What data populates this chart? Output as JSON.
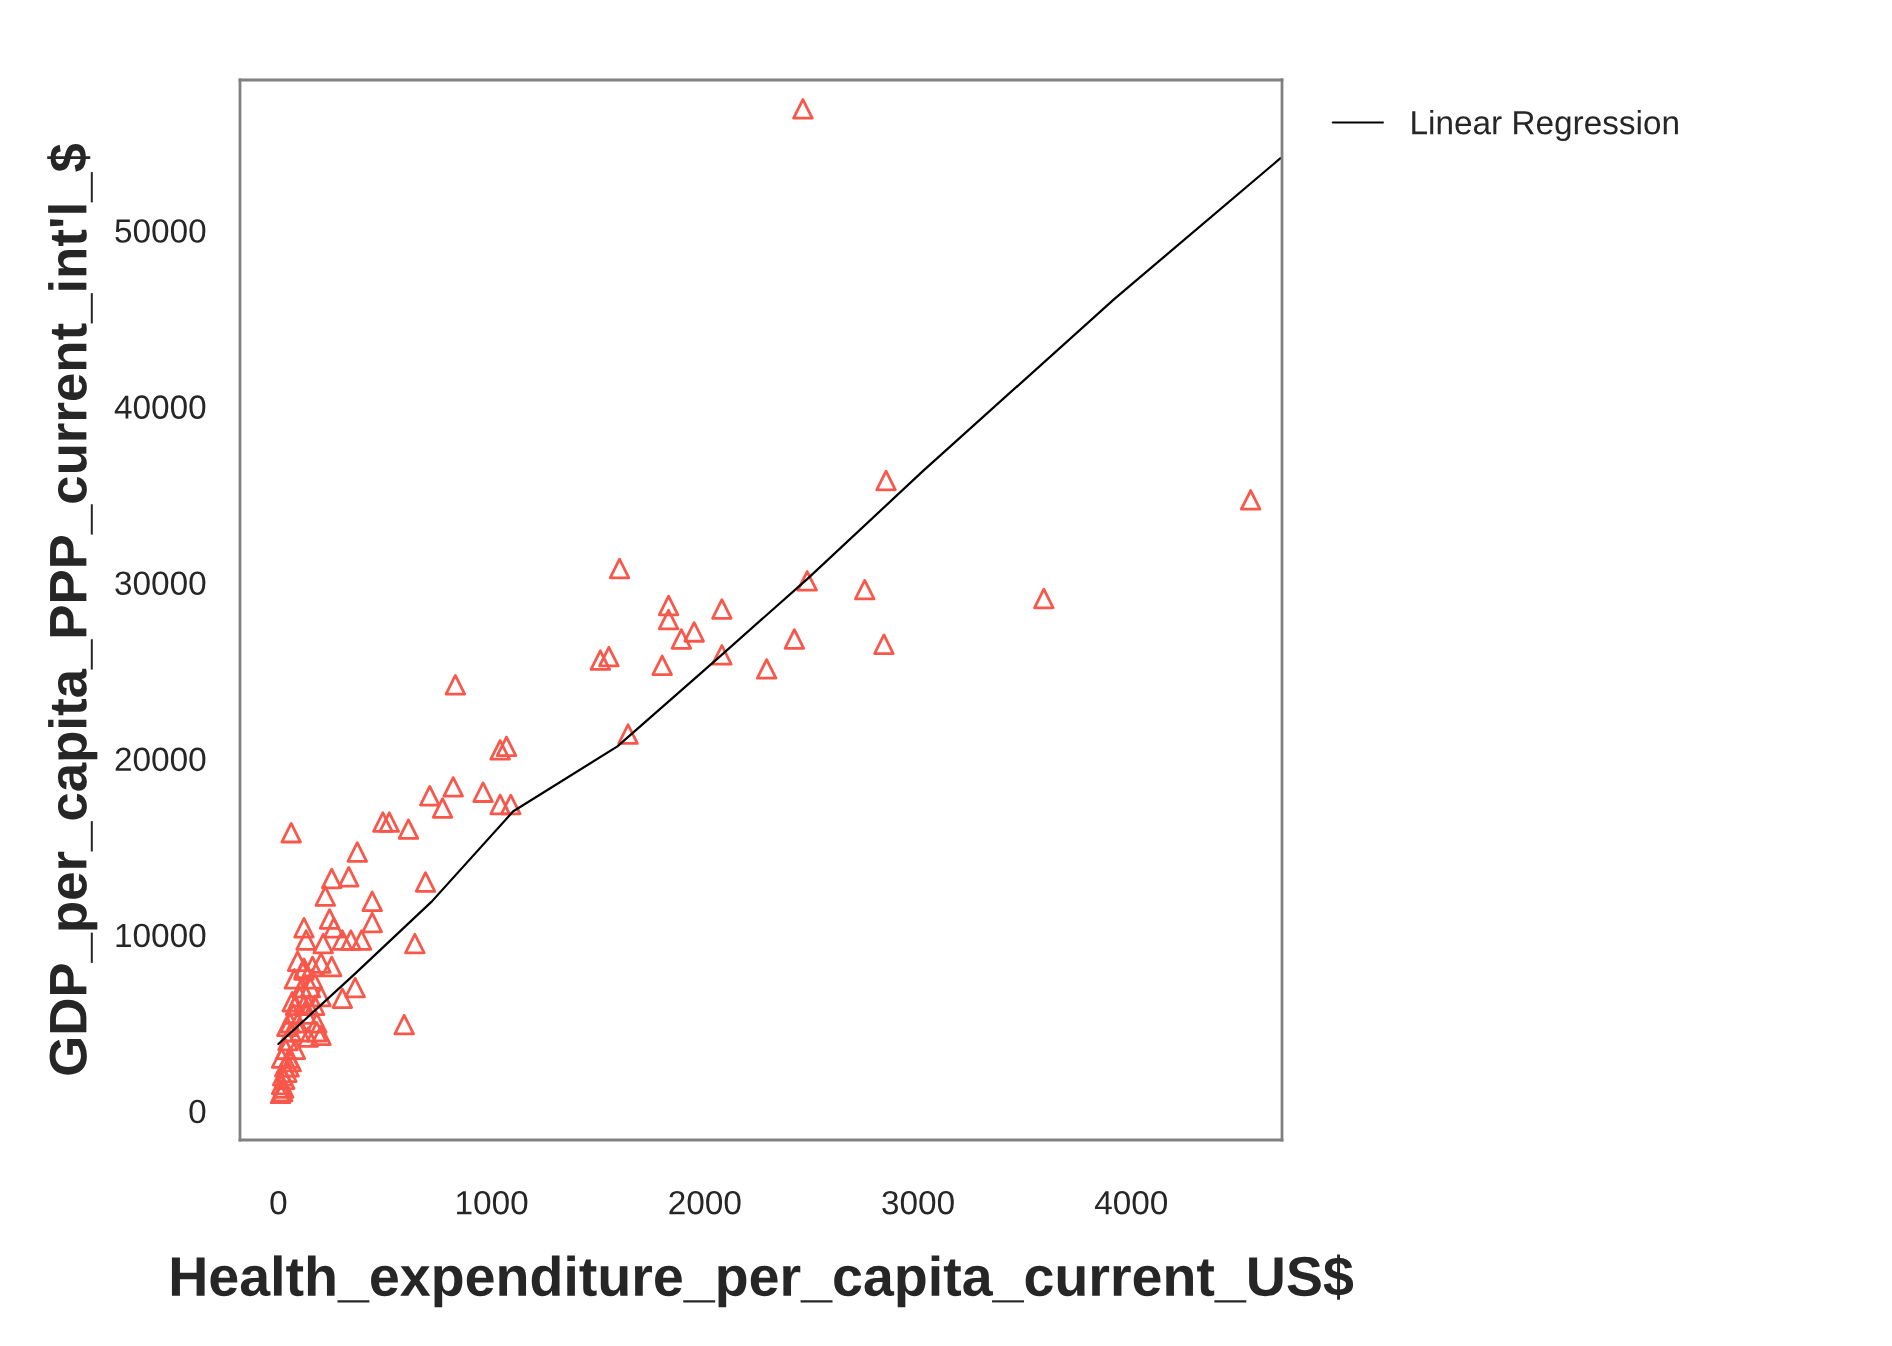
{
  "chart_data": {
    "type": "scatter",
    "xlabel": "Health_expenditure_per_capita_current_US$",
    "ylabel": "GDP_per_capita_PPP_current_int'l_$",
    "xlim": [
      -180,
      4707
    ],
    "ylim": [
      -1650,
      58540
    ],
    "xticks": [
      0,
      1000,
      2000,
      3000,
      4000
    ],
    "yticks": [
      0,
      10000,
      20000,
      30000,
      40000,
      50000
    ],
    "grid": false,
    "legend": "top right",
    "series": [
      {
        "color": "#f8574a",
        "marker": "triangle",
        "x": [
          2460,
          2850,
          4560,
          3590,
          2480,
          2750,
          2420,
          2840,
          1600,
          1830,
          1830,
          2080,
          1950,
          1890,
          2080,
          2290,
          1800,
          1510,
          1550,
          830,
          1640,
          1040,
          1070,
          710,
          820,
          770,
          960,
          1040,
          1090,
          610,
          60,
          370,
          250,
          330,
          220,
          440,
          690,
          440,
          120,
          240,
          260,
          130,
          300,
          340,
          390,
          640,
          210,
          200,
          250,
          120,
          360,
          300,
          590,
          180,
          200,
          490,
          520,
          10,
          15,
          25,
          20,
          30,
          15,
          40,
          35,
          50,
          45,
          60,
          55,
          70,
          80,
          90,
          100,
          110,
          75,
          120,
          130,
          140,
          150,
          100,
          80,
          60,
          30,
          120,
          90,
          160,
          170,
          180,
          200,
          140,
          65,
          50,
          20,
          40,
          160
        ],
        "values": [
          56900,
          35800,
          34700,
          29100,
          30100,
          29600,
          26800,
          26500,
          30800,
          28700,
          27900,
          28500,
          27200,
          26800,
          25900,
          25100,
          25300,
          25600,
          25800,
          24200,
          21400,
          20500,
          20700,
          17900,
          18400,
          17200,
          18100,
          17400,
          17400,
          16000,
          15800,
          14700,
          13200,
          13300,
          12200,
          11900,
          13000,
          10700,
          10400,
          10900,
          10400,
          9700,
          9700,
          9700,
          9700,
          9500,
          9500,
          8400,
          8200,
          8100,
          7000,
          6400,
          4900,
          4500,
          4300,
          16400,
          16400,
          1000,
          1500,
          1300,
          2000,
          2500,
          3000,
          2200,
          3500,
          3000,
          4000,
          4500,
          5000,
          5500,
          6000,
          5000,
          6500,
          7000,
          7500,
          6000,
          5500,
          6000,
          7000,
          4500,
          3500,
          2800,
          1800,
          8000,
          8500,
          8200,
          6000,
          5000,
          6500,
          4200,
          6200,
          2500,
          1100,
          4800,
          7500
        ]
      },
      {
        "type": "line",
        "name": "Linear Regression",
        "color": "#000000",
        "x": [
          0,
          360,
          720,
          1100,
          1590,
          2070,
          2480,
          3020,
          3920,
          4700
        ],
        "values": [
          3800,
          7800,
          11900,
          17000,
          20700,
          25800,
          30200,
          36300,
          46100,
          54100
        ]
      }
    ]
  }
}
